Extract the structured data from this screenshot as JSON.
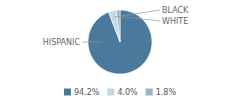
{
  "chart_data": {
    "type": "pie",
    "categories": [
      "HISPANIC",
      "BLACK",
      "WHITE"
    ],
    "values": [
      94.2,
      4.0,
      1.8
    ],
    "value_labels": [
      "94.2%",
      "4.0%",
      "1.8%"
    ],
    "colors": [
      "#4a7a9b",
      "#c5d8e5",
      "#9ab3c5"
    ]
  }
}
